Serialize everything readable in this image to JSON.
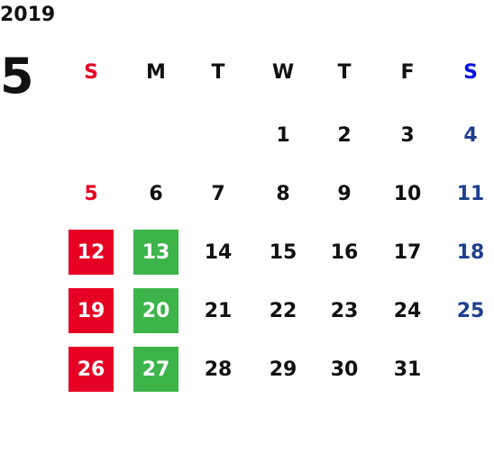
{
  "year": "2019",
  "month": "5",
  "weekdays": [
    "S",
    "M",
    "T",
    "W",
    "T",
    "F",
    "S"
  ],
  "weeks": [
    [
      null,
      null,
      null,
      1,
      2,
      3,
      4
    ],
    [
      5,
      6,
      7,
      8,
      9,
      10,
      11
    ],
    [
      12,
      13,
      14,
      15,
      16,
      17,
      18
    ],
    [
      19,
      20,
      21,
      22,
      23,
      24,
      25
    ],
    [
      26,
      27,
      28,
      29,
      30,
      31,
      null
    ]
  ]
}
